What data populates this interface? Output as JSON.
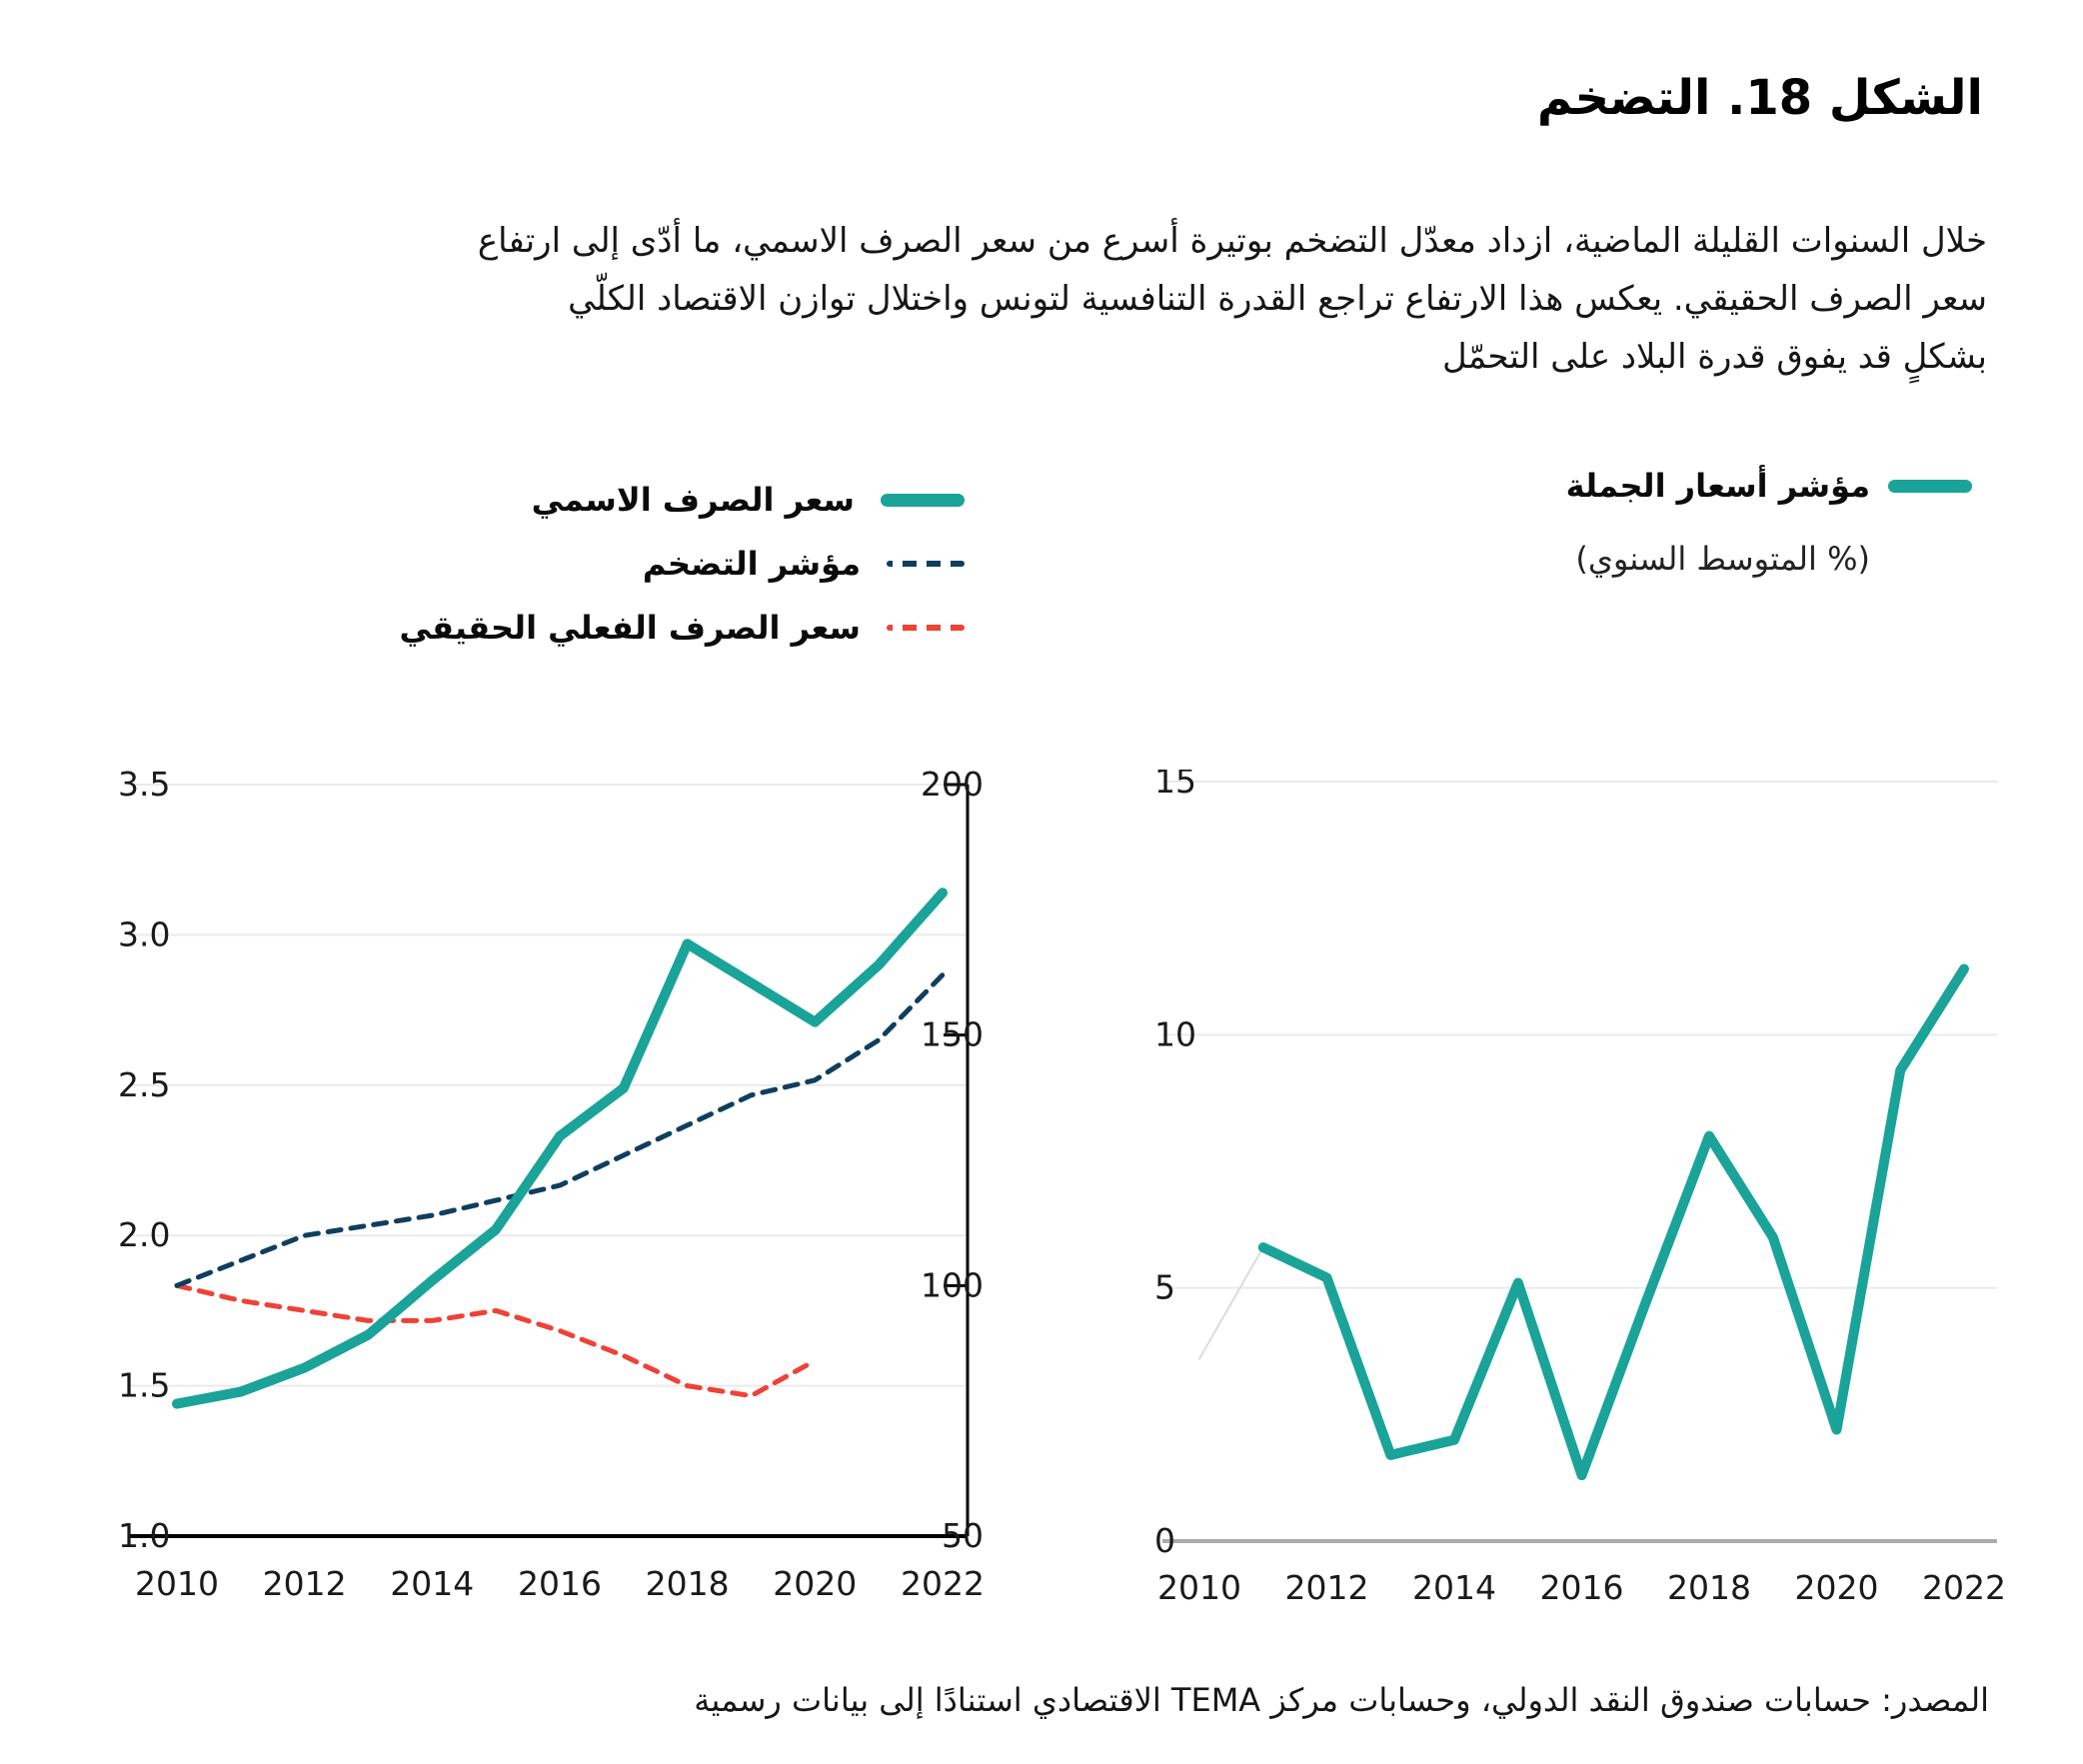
{
  "header": {
    "title": "الشكل 18. التضخم",
    "description_lines": [
      "خلال السنوات القليلة الماضية، ازداد معدّل التضخم بوتيرة أسرع من سعر الصرف الاسمي، ما أدّى إلى ارتفاع",
      "سعر الصرف الحقيقي. يعكس هذا الارتفاع تراجع القدرة التنافسية لتونس واختلال توازن الاقتصاد الكلّي",
      "بشكلٍ قد يفوق قدرة البلاد على التحمّل"
    ]
  },
  "footer": {
    "source": "المصدر: حسابات صندوق النقد الدولي،  وحسابات مركز TEMA الاقتصادي استنادًا إلى بيانات رسمية"
  },
  "colors": {
    "teal": "#1AA399",
    "navy": "#0F3E5F",
    "red": "#EF4136",
    "grid": "#EAEAEA",
    "axis": "#000000",
    "baseline_gray": "#ABABAB",
    "faint": "#DCDCDC",
    "tick_text": "#1A1A1A"
  },
  "chart_data": [
    {
      "type": "line",
      "name": "exchange-rate-and-inflation",
      "x": [
        2010,
        2011,
        2012,
        2013,
        2014,
        2015,
        2016,
        2017,
        2018,
        2019,
        2020,
        2021,
        2022
      ],
      "x_tick_labels": [
        "2010",
        "2012",
        "2014",
        "2016",
        "2018",
        "2020",
        "2022"
      ],
      "left_axis": {
        "min": 1.0,
        "max": 3.5,
        "tick_values": [
          1.0,
          1.5,
          2.0,
          2.5,
          3.0,
          3.5
        ],
        "tick_labels": [
          "1.0",
          "1.5",
          "2.0",
          "2.5",
          "3.0",
          "3.5"
        ]
      },
      "right_axis": {
        "min": 50,
        "max": 200,
        "tick_values": [
          50,
          100,
          150,
          200
        ],
        "tick_labels": [
          "50",
          "100",
          "150",
          "200"
        ]
      },
      "grid": true,
      "legend_position": "top",
      "series": [
        {
          "key": "nominal-exchange-rate",
          "name": "سعر الصرف الاسمي",
          "axis": "left",
          "style": "solid",
          "color": "#1AA399",
          "values": [
            1.44,
            1.48,
            1.56,
            1.67,
            1.85,
            2.02,
            2.33,
            2.49,
            2.97,
            2.84,
            2.71,
            2.9,
            3.14
          ]
        },
        {
          "key": "inflation-index",
          "name": "مؤشر التضخم",
          "axis": "right",
          "style": "dashed",
          "color": "#0F3E5F",
          "values": [
            100,
            105,
            110,
            112,
            114,
            117,
            120,
            126,
            132,
            138,
            141,
            149,
            162
          ]
        },
        {
          "key": "real-effective-exchange-rate",
          "name": "سعر الصرف الفعلي الحقيقي",
          "axis": "right",
          "style": "dashed",
          "color": "#EF4136",
          "values": [
            100,
            97,
            95,
            93,
            93,
            95,
            91,
            86,
            80,
            78,
            85
          ]
        }
      ]
    },
    {
      "type": "line",
      "name": "wholesale-price-index",
      "x": [
        2010,
        2011,
        2012,
        2013,
        2014,
        2015,
        2016,
        2017,
        2018,
        2019,
        2020,
        2021,
        2022
      ],
      "x_tick_labels": [
        "2010",
        "2012",
        "2014",
        "2016",
        "2018",
        "2020",
        "2022"
      ],
      "y_axis": {
        "min": 0,
        "max": 15,
        "tick_values": [
          0,
          5,
          10,
          15
        ],
        "tick_labels": [
          "0",
          "5",
          "10",
          "15"
        ]
      },
      "grid": true,
      "series": [
        {
          "key": "wholesale-price-index",
          "name": "مؤشر أسعار الجملة",
          "subtitle": "(% المتوسط السنوي)",
          "style": "solid",
          "color": "#1AA399",
          "values": [
            null,
            5.8,
            5.2,
            1.7,
            2.0,
            5.1,
            1.3,
            4.7,
            8.0,
            6.0,
            2.2,
            9.3,
            11.3
          ]
        }
      ],
      "faint_segment": {
        "x": [
          2010,
          2011
        ],
        "values": [
          3.6,
          5.8
        ],
        "color": "#DCDCDC"
      }
    }
  ]
}
